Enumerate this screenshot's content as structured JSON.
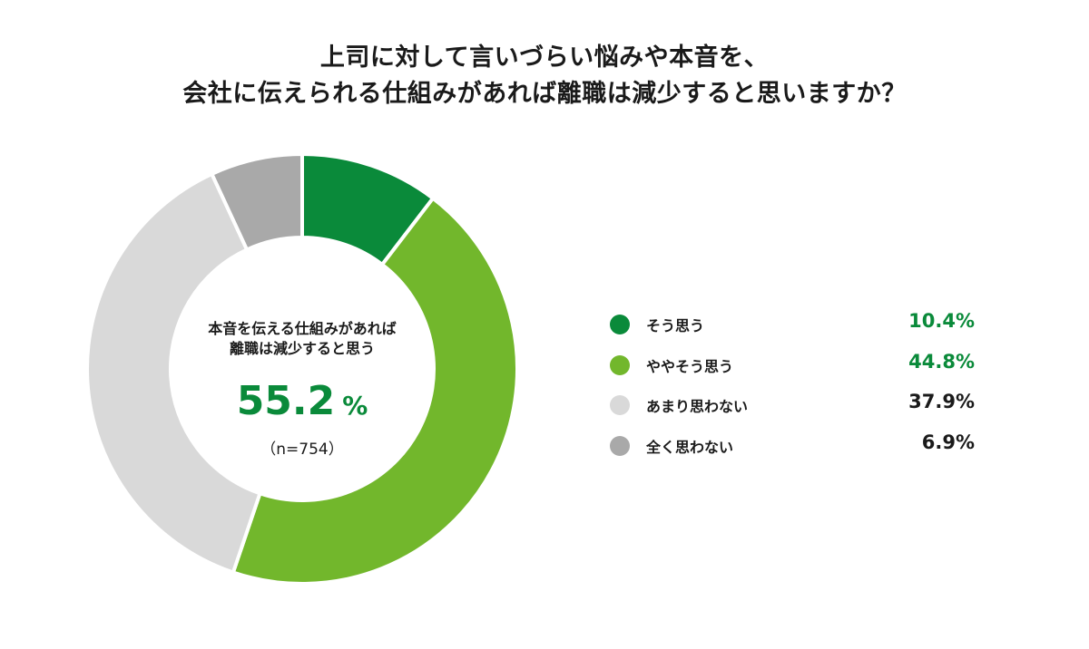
{
  "title": {
    "line1": "上司に対して言いづらい悩みや本音を、",
    "line2": "会社に伝えられる仕組みがあれば離職は減少すると思いますか？"
  },
  "center": {
    "label_line1": "本音を伝える仕組みがあれば",
    "label_line2": "離職は減少すると思う",
    "value": "55.2",
    "unit": "%",
    "sample": "（n=754）"
  },
  "chart_data": {
    "type": "pie",
    "donut": true,
    "categories": [
      "そう思う",
      "ややそう思う",
      "あまり思わない",
      "全く思わない"
    ],
    "values": [
      10.4,
      44.8,
      37.9,
      6.9
    ],
    "value_labels": [
      "10.4%",
      "44.8%",
      "37.9%",
      "6.9%"
    ],
    "colors": [
      "#0a8a3a",
      "#72b72c",
      "#d9d9d9",
      "#a9a9a9"
    ],
    "value_colors": [
      "#0a8a3a",
      "#0a8a3a",
      "#1a1a1a",
      "#1a1a1a"
    ],
    "legend_position": "right"
  }
}
